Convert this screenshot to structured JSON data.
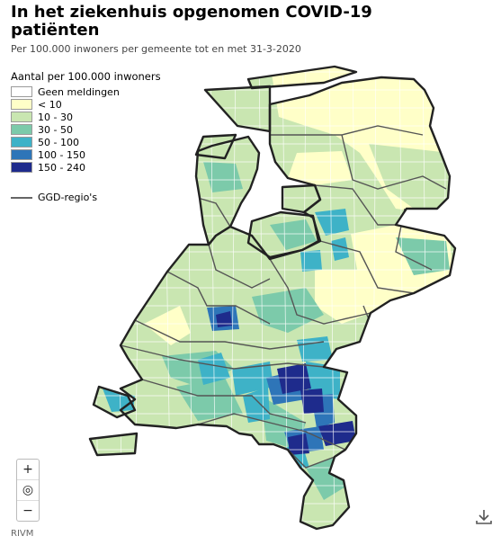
{
  "header": {
    "title": "In het ziekenhuis opgenomen COVID-19 patiënten",
    "subtitle": "Per 100.000 inwoners per gemeente tot en met 31-3-2020"
  },
  "legend": {
    "title": "Aantal per 100.000 inwoners",
    "classes": [
      {
        "label": "Geen meldingen",
        "color": "#ffffff"
      },
      {
        "label": "< 10",
        "color": "#ffffc8"
      },
      {
        "label": "10 - 30",
        "color": "#c9e6b1"
      },
      {
        "label": "30 - 50",
        "color": "#7ccaaa"
      },
      {
        "label": "50 - 100",
        "color": "#3eb2c7"
      },
      {
        "label": "100 - 150",
        "color": "#2e75b8"
      },
      {
        "label": "150 - 240",
        "color": "#1e2b8c"
      }
    ],
    "region_line_label": "GGD-regio's",
    "region_line_color": "#666666"
  },
  "controls": {
    "zoom_in": "+",
    "reset": "◎",
    "zoom_out": "−"
  },
  "footer": {
    "credit": "RIVM",
    "download_icon": "download-icon"
  }
}
